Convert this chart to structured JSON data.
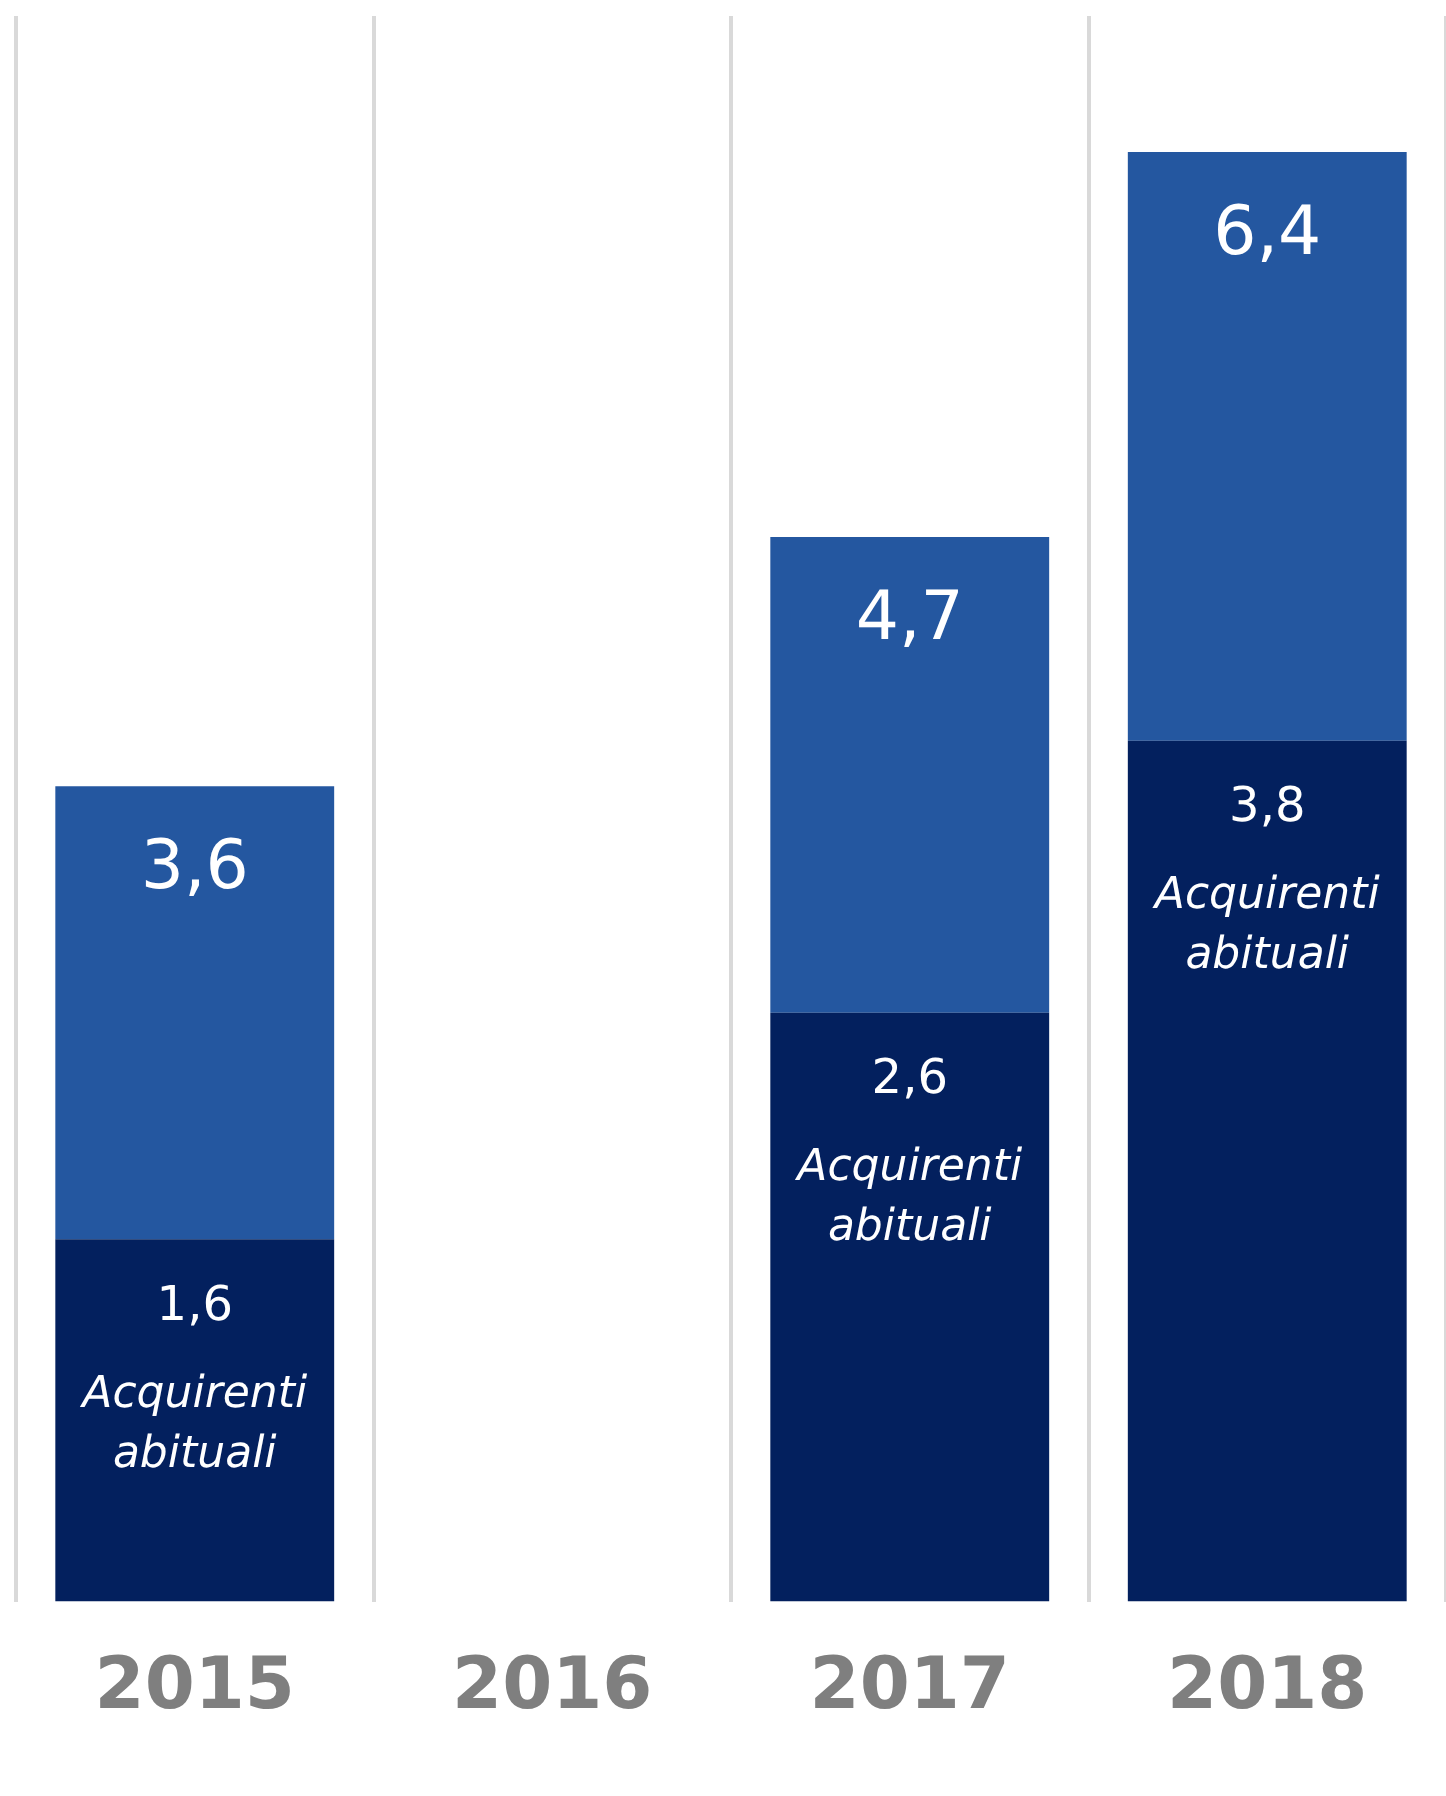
{
  "chart_data": {
    "type": "bar",
    "categories": [
      "2015",
      "2016",
      "2017",
      "2018"
    ],
    "stacked": true,
    "series": [
      {
        "name": "Acquirenti abituali",
        "color": "#03205e",
        "values": [
          1.6,
          null,
          2.6,
          3.8
        ],
        "value_labels": [
          "1,6",
          null,
          "2,6",
          "3,8"
        ]
      },
      {
        "color": "#2457a0",
        "values": [
          2.0,
          null,
          2.1,
          2.6
        ]
      }
    ],
    "totals": [
      "3,6",
      null,
      "4,7",
      "6,4"
    ],
    "grid": "x",
    "legend": false,
    "tick_labels": "x"
  }
}
